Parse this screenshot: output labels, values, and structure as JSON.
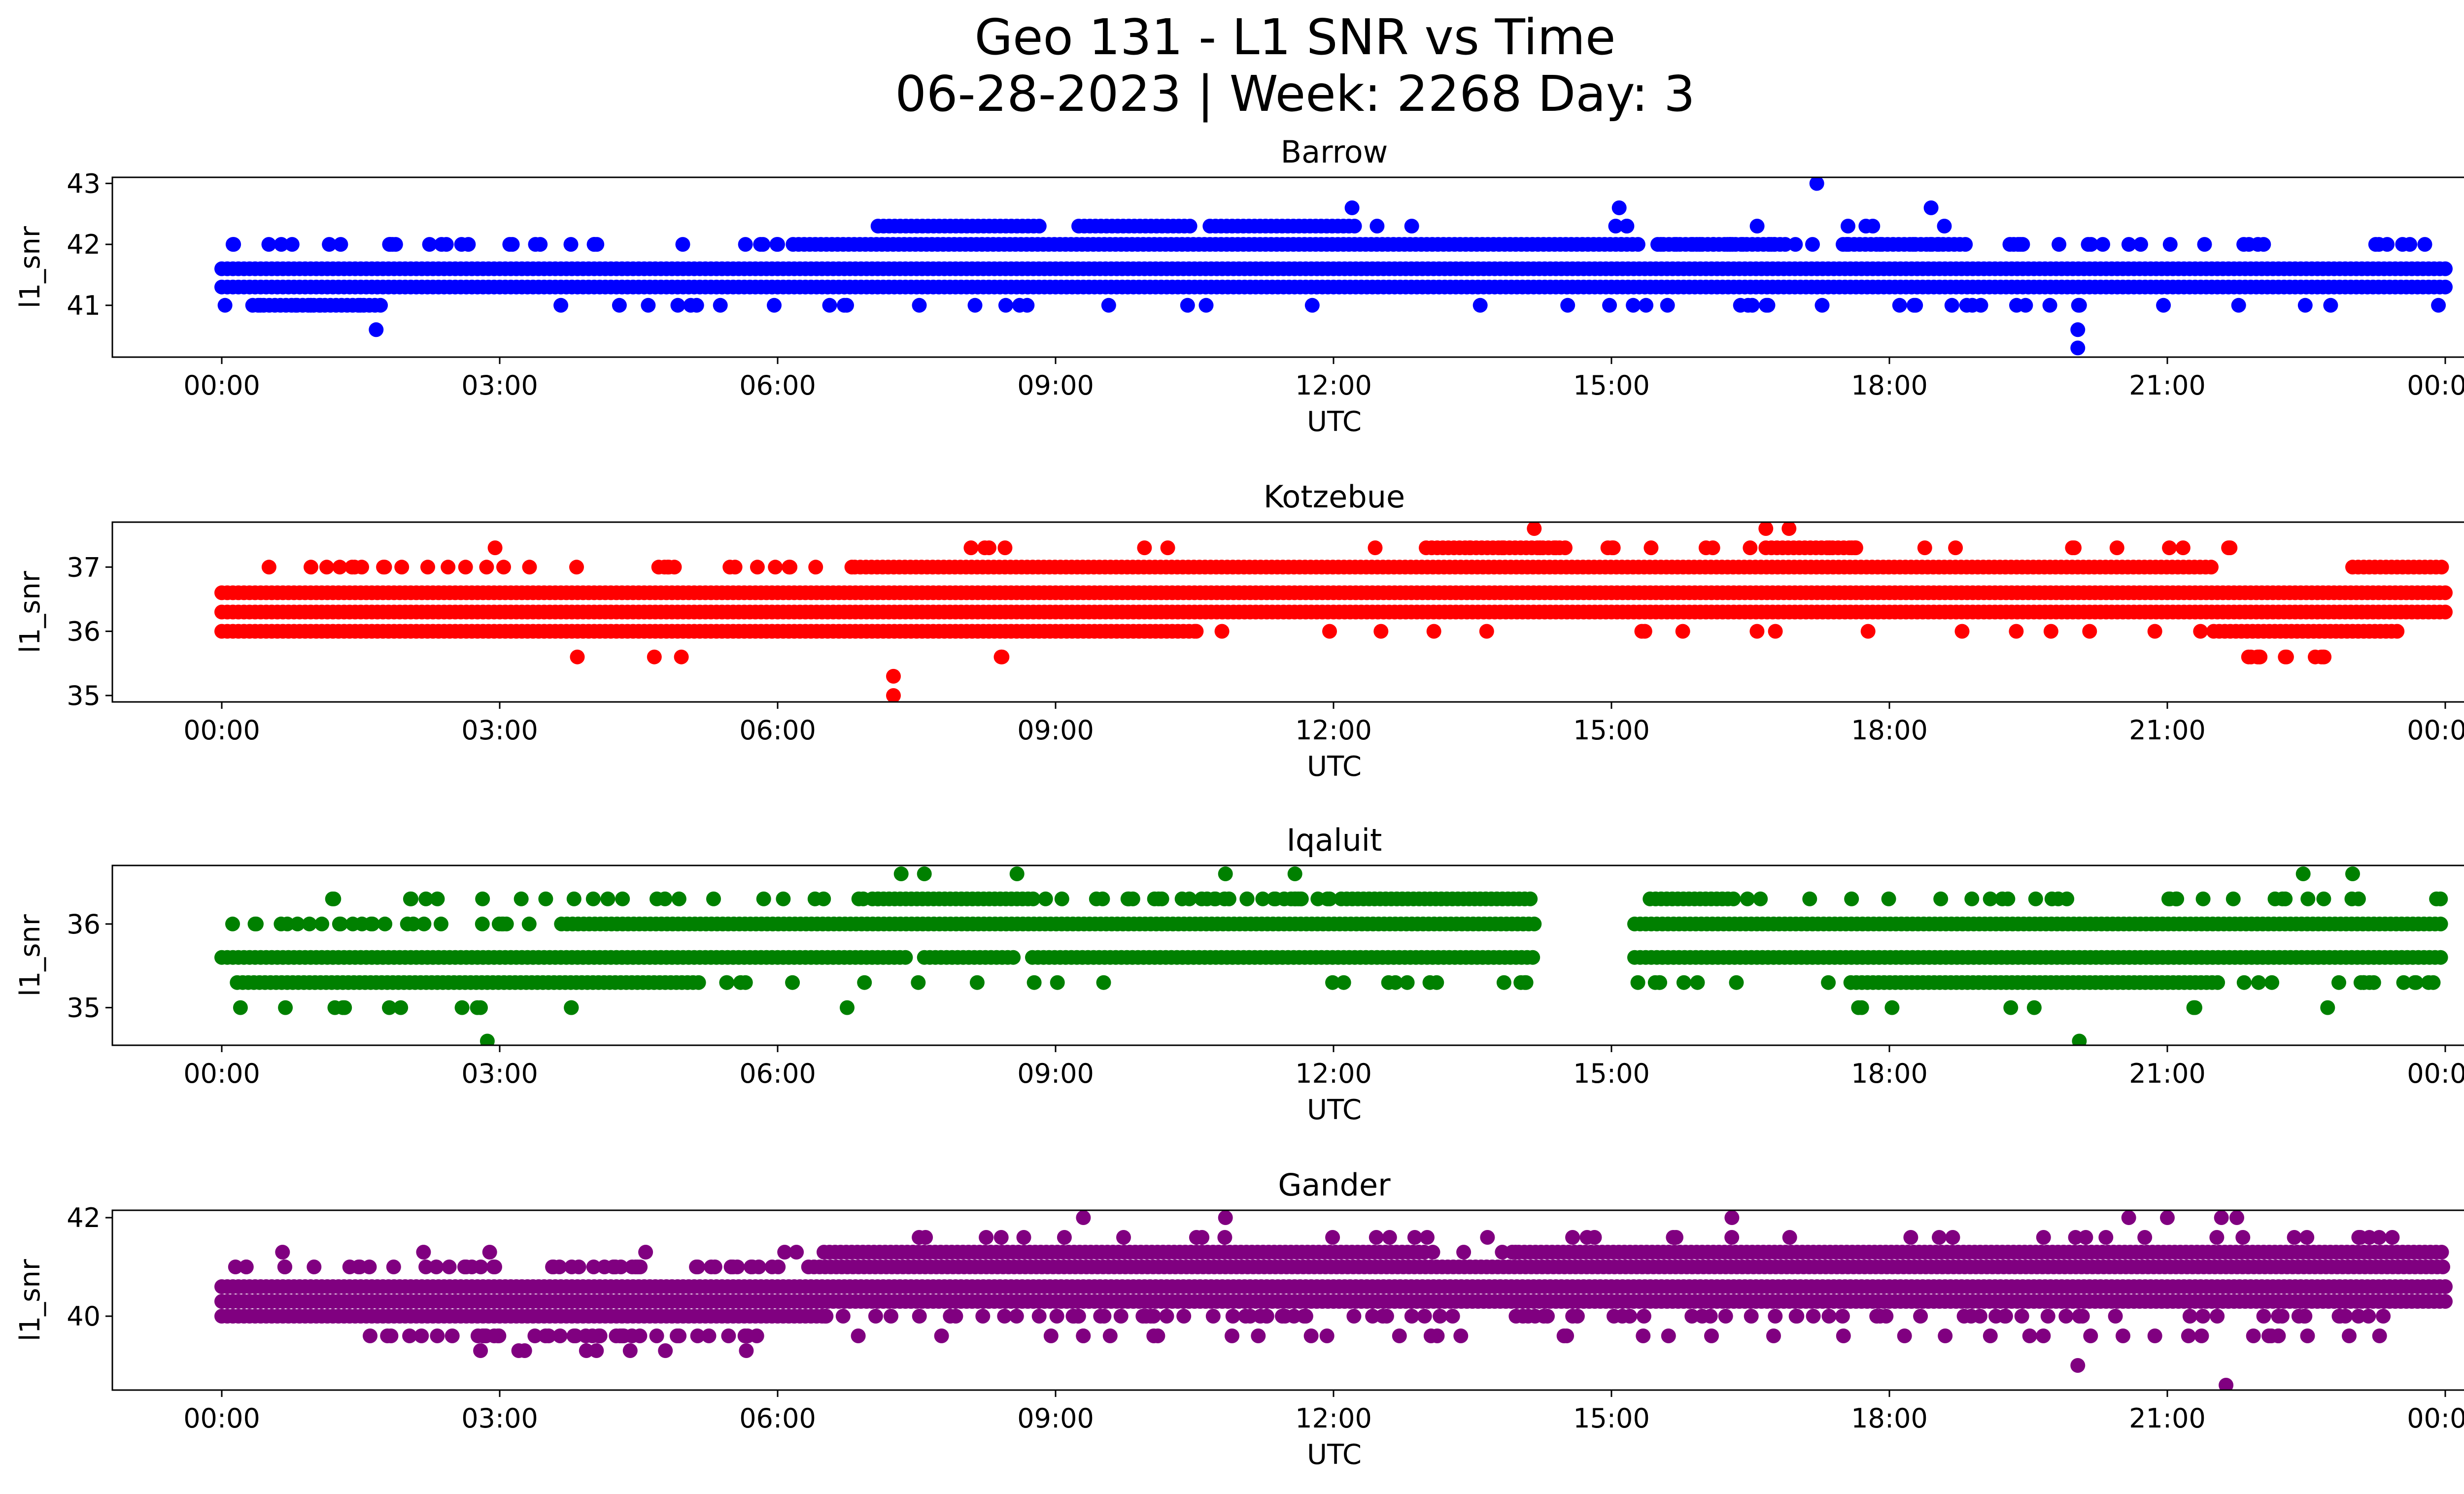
{
  "figure": {
    "title_line1": "Geo 131 - L1 SNR vs Time",
    "title_line2": "06-28-2023 | Week: 2268 Day: 3"
  },
  "chart_data": [
    {
      "type": "scatter",
      "title": "Barrow",
      "xlabel": "UTC",
      "ylabel": "l1_snr",
      "color": "#0000ff",
      "xlim": [
        "00:00",
        "24:00"
      ],
      "ylim": [
        40.15,
        43.1
      ],
      "xticks": [
        "00:00",
        "03:00",
        "06:00",
        "09:00",
        "12:00",
        "15:00",
        "18:00",
        "21:00",
        "00:00"
      ],
      "yticks": [
        41,
        42,
        43
      ],
      "bands": [
        {
          "y": 41.6,
          "from": "00:00",
          "to": "24:00"
        },
        {
          "y": 41.3,
          "from": "00:00",
          "to": "24:00"
        },
        {
          "y": 41.0,
          "from": "00:20",
          "to": "01:45"
        },
        {
          "y": 42.0,
          "from": "06:10",
          "to": "15:20"
        },
        {
          "y": 42.3,
          "from": "07:05",
          "to": "08:50"
        },
        {
          "y": 42.3,
          "from": "09:15",
          "to": "10:30"
        },
        {
          "y": 42.3,
          "from": "10:40",
          "to": "12:15"
        },
        {
          "y": 42.0,
          "from": "15:30",
          "to": "16:50"
        },
        {
          "y": 42.0,
          "from": "17:30",
          "to": "18:50"
        }
      ],
      "scatter_ranges": [
        {
          "y": 41.0,
          "from": "00:00",
          "to": "24:00",
          "n": 55
        },
        {
          "y": 42.0,
          "from": "00:00",
          "to": "06:10",
          "n": 30
        },
        {
          "y": 42.0,
          "from": "15:00",
          "to": "24:00",
          "n": 45
        },
        {
          "y": 42.3,
          "from": "12:15",
          "to": "19:00",
          "n": 10
        }
      ],
      "outliers": [
        {
          "x": "01:40",
          "y": 40.6
        },
        {
          "x": "12:12",
          "y": 42.6
        },
        {
          "x": "15:05",
          "y": 42.6
        },
        {
          "x": "17:13",
          "y": 43.0
        },
        {
          "x": "18:27",
          "y": 42.6
        },
        {
          "x": "20:02",
          "y": 40.6
        },
        {
          "x": "20:02",
          "y": 40.3
        }
      ]
    },
    {
      "type": "scatter",
      "title": "Kotzebue",
      "xlabel": "UTC",
      "ylabel": "l1_snr",
      "color": "#ff0000",
      "xlim": [
        "00:00",
        "24:00"
      ],
      "ylim": [
        34.9,
        37.7
      ],
      "xticks": [
        "00:00",
        "03:00",
        "06:00",
        "09:00",
        "12:00",
        "15:00",
        "18:00",
        "21:00",
        "00:00"
      ],
      "yticks": [
        35,
        36,
        37
      ],
      "bands": [
        {
          "y": 36.6,
          "from": "00:00",
          "to": "24:00"
        },
        {
          "y": 36.3,
          "from": "00:00",
          "to": "24:00"
        },
        {
          "y": 36.0,
          "from": "00:00",
          "to": "10:30"
        },
        {
          "y": 36.0,
          "from": "21:30",
          "to": "23:30"
        },
        {
          "y": 37.0,
          "from": "06:50",
          "to": "21:30"
        },
        {
          "y": 37.0,
          "from": "23:00",
          "to": "24:00"
        },
        {
          "y": 37.3,
          "from": "13:00",
          "to": "14:30"
        },
        {
          "y": 37.3,
          "from": "16:40",
          "to": "17:40"
        }
      ],
      "scatter_ranges": [
        {
          "y": 37.0,
          "from": "00:00",
          "to": "06:50",
          "n": 30
        },
        {
          "y": 37.3,
          "from": "08:00",
          "to": "21:50",
          "n": 30
        },
        {
          "y": 36.0,
          "from": "10:30",
          "to": "21:30",
          "n": 18
        },
        {
          "y": 35.6,
          "from": "00:50",
          "to": "09:40",
          "n": 5
        },
        {
          "y": 35.6,
          "from": "21:40",
          "to": "22:50",
          "n": 12
        }
      ],
      "outliers": [
        {
          "x": "02:57",
          "y": 37.3
        },
        {
          "x": "07:15",
          "y": 35.3
        },
        {
          "x": "07:15",
          "y": 35.0
        },
        {
          "x": "14:10",
          "y": 37.6
        },
        {
          "x": "16:40",
          "y": 37.6
        },
        {
          "x": "16:55",
          "y": 37.6
        }
      ]
    },
    {
      "type": "scatter",
      "title": "Iqaluit",
      "xlabel": "UTC",
      "ylabel": "l1_snr",
      "color": "#008000",
      "xlim": [
        "00:00",
        "24:00"
      ],
      "ylim": [
        34.55,
        36.7
      ],
      "xticks": [
        "00:00",
        "03:00",
        "06:00",
        "09:00",
        "12:00",
        "15:00",
        "18:00",
        "21:00",
        "00:00"
      ],
      "yticks": [
        35,
        36
      ],
      "bands": [
        {
          "y": 35.6,
          "from": "00:00",
          "to": "07:25"
        },
        {
          "y": 35.6,
          "from": "07:35",
          "to": "08:35"
        },
        {
          "y": 35.6,
          "from": "08:45",
          "to": "14:10"
        },
        {
          "y": 35.6,
          "from": "15:15",
          "to": "24:00"
        },
        {
          "y": 36.0,
          "from": "03:40",
          "to": "14:10"
        },
        {
          "y": 36.0,
          "from": "15:15",
          "to": "24:00"
        },
        {
          "y": 35.3,
          "from": "00:10",
          "to": "05:10"
        },
        {
          "y": 35.3,
          "from": "17:35",
          "to": "21:35"
        },
        {
          "y": 36.3,
          "from": "07:05",
          "to": "08:45"
        },
        {
          "y": 36.3,
          "from": "12:05",
          "to": "14:10"
        },
        {
          "y": 36.3,
          "from": "15:25",
          "to": "16:20"
        }
      ],
      "scatter_ranges": [
        {
          "y": 36.0,
          "from": "00:00",
          "to": "03:40",
          "n": 25
        },
        {
          "y": 36.3,
          "from": "00:00",
          "to": "07:05",
          "n": 25
        },
        {
          "y": 36.3,
          "from": "08:45",
          "to": "12:05",
          "n": 35
        },
        {
          "y": 36.3,
          "from": "16:20",
          "to": "24:00",
          "n": 30
        },
        {
          "y": 35.3,
          "from": "05:10",
          "to": "14:10",
          "n": 22
        },
        {
          "y": 35.3,
          "from": "15:15",
          "to": "17:35",
          "n": 8
        },
        {
          "y": 35.3,
          "from": "21:35",
          "to": "24:00",
          "n": 14
        },
        {
          "y": 35.0,
          "from": "00:10",
          "to": "03:50",
          "n": 12
        },
        {
          "y": 35.0,
          "from": "16:30",
          "to": "23:00",
          "n": 8
        }
      ],
      "outliers": [
        {
          "x": "02:52",
          "y": 34.6
        },
        {
          "x": "06:45",
          "y": 35.0
        },
        {
          "x": "07:20",
          "y": 36.6
        },
        {
          "x": "07:35",
          "y": 36.6
        },
        {
          "x": "08:35",
          "y": 36.6
        },
        {
          "x": "10:50",
          "y": 36.6
        },
        {
          "x": "11:35",
          "y": 36.6
        },
        {
          "x": "20:03",
          "y": 34.6
        },
        {
          "x": "22:28",
          "y": 36.6
        },
        {
          "x": "23:00",
          "y": 36.6
        }
      ]
    },
    {
      "type": "scatter",
      "title": "Gander",
      "xlabel": "UTC",
      "ylabel": "l1_snr",
      "color": "#800080",
      "xlim": [
        "00:00",
        "24:00"
      ],
      "ylim": [
        38.5,
        42.15
      ],
      "xticks": [
        "00:00",
        "03:00",
        "06:00",
        "09:00",
        "12:00",
        "15:00",
        "18:00",
        "21:00",
        "00:00"
      ],
      "yticks": [
        40,
        42
      ],
      "bands": [
        {
          "y": 40.0,
          "from": "00:00",
          "to": "06:30"
        },
        {
          "y": 40.3,
          "from": "00:00",
          "to": "24:00"
        },
        {
          "y": 40.6,
          "from": "00:00",
          "to": "24:00"
        },
        {
          "y": 41.0,
          "from": "06:20",
          "to": "24:00"
        },
        {
          "y": 41.3,
          "from": "06:30",
          "to": "13:00"
        },
        {
          "y": 41.3,
          "from": "14:00",
          "to": "24:00"
        }
      ],
      "scatter_ranges": [
        {
          "y": 41.0,
          "from": "00:00",
          "to": "06:20",
          "n": 50
        },
        {
          "y": 39.6,
          "from": "01:30",
          "to": "06:00",
          "n": 40
        },
        {
          "y": 39.3,
          "from": "02:40",
          "to": "05:40",
          "n": 8
        },
        {
          "y": 40.0,
          "from": "06:30",
          "to": "24:00",
          "n": 100
        },
        {
          "y": 41.3,
          "from": "00:00",
          "to": "06:30",
          "n": 6
        },
        {
          "y": 41.3,
          "from": "13:00",
          "to": "14:00",
          "n": 5
        },
        {
          "y": 41.6,
          "from": "07:00",
          "to": "23:40",
          "n": 40
        },
        {
          "y": 39.6,
          "from": "06:30",
          "to": "24:00",
          "n": 40
        }
      ],
      "outliers": [
        {
          "x": "09:18",
          "y": 42.0
        },
        {
          "x": "10:50",
          "y": 42.0
        },
        {
          "x": "16:18",
          "y": 42.0
        },
        {
          "x": "20:35",
          "y": 42.0
        },
        {
          "x": "21:00",
          "y": 42.0
        },
        {
          "x": "21:35",
          "y": 42.0
        },
        {
          "x": "21:45",
          "y": 42.0
        },
        {
          "x": "20:02",
          "y": 39.0
        },
        {
          "x": "21:38",
          "y": 38.6
        },
        {
          "x": "16:45",
          "y": 39.6
        }
      ]
    }
  ]
}
